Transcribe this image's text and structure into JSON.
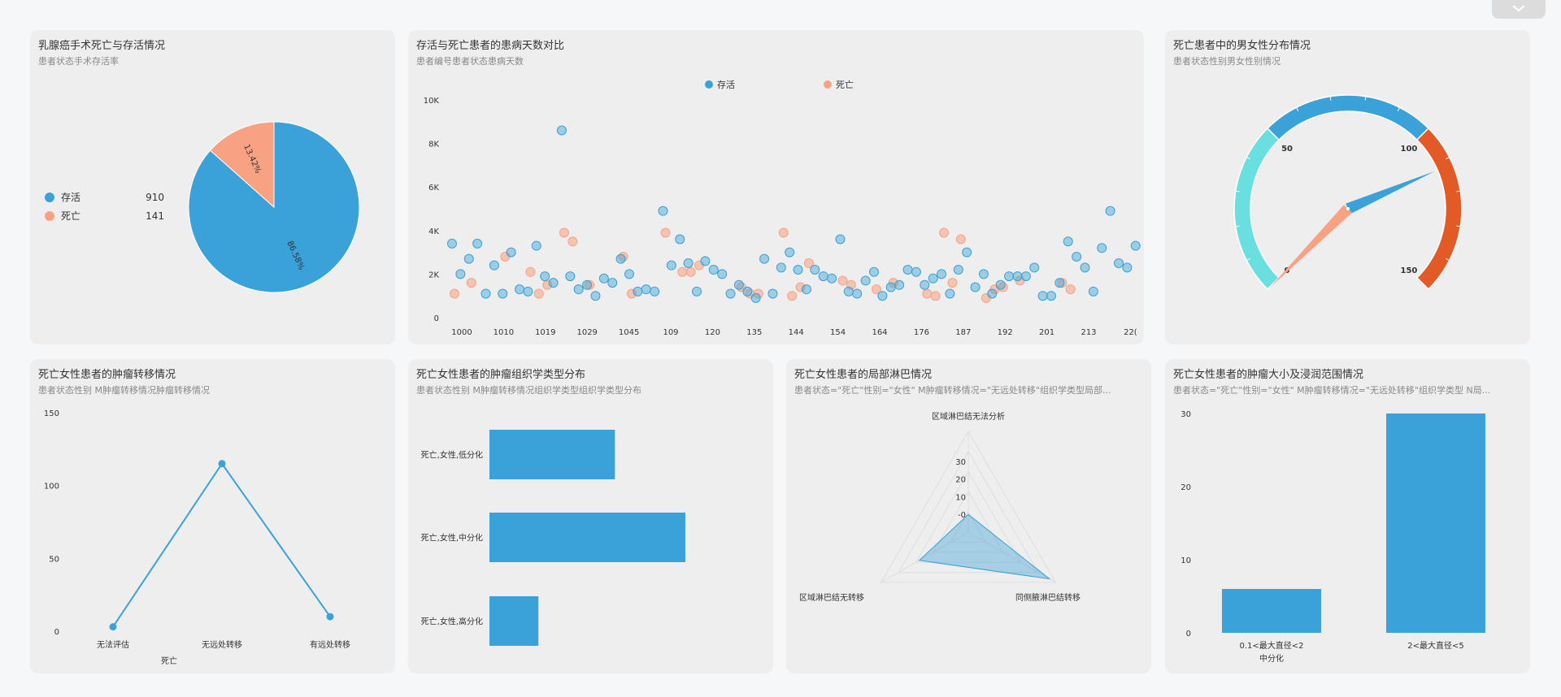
{
  "colors": {
    "alive": "#3aa1d9",
    "dead": "#f9a283",
    "cyan": "#6adfe0",
    "orange": "#e25a26",
    "bar": "#3aa1d9"
  },
  "top_toggle": {
    "icon": "chevron-down-icon"
  },
  "cards": {
    "pie": {
      "title": "乳腺癌手术死亡与存活情况",
      "subtitle": "患者状态手术存活率"
    },
    "scatter": {
      "title": "存活与死亡患者的患病天数对比",
      "subtitle": "患者编号患者状态患病天数"
    },
    "gauge": {
      "title": "死亡患者中的男女性分布情况",
      "subtitle": "患者状态性别男女性别情况"
    },
    "line": {
      "title": "死亡女性患者的肿瘤转移情况",
      "subtitle": "患者状态性别 M肿瘤转移情况肿瘤转移情况"
    },
    "hbar": {
      "title": "死亡女性患者的肿瘤组织学类型分布",
      "subtitle": "患者状态性别 M肿瘤转移情况组织学类型组织学类型分布"
    },
    "radar": {
      "title": "死亡女性患者的局部淋巴情况",
      "subtitle": "患者状态=\"死亡\"性别=\"女性\" M肿瘤转移情况=\"无远处转移\"组织学类型局部..."
    },
    "vbar": {
      "title": "死亡女性患者的肿瘤大小及浸润范围情况",
      "subtitle": "患者状态=\"死亡\"性别=\"女性\" M肿瘤转移情况=\"无远处转移\"组织学类型 N局..."
    }
  },
  "chart_data": [
    {
      "id": "pie",
      "type": "pie",
      "legend": [
        {
          "name": "存活",
          "value": "910"
        },
        {
          "name": "死亡",
          "value": "141"
        }
      ],
      "values": [
        910,
        141
      ],
      "labels": [
        "86.58%",
        "13.42%"
      ]
    },
    {
      "id": "scatter",
      "type": "scatter",
      "legend": [
        "存活",
        "死亡"
      ],
      "y_ticks": [
        "0",
        "2K",
        "4K",
        "6K",
        "8K",
        "10K"
      ],
      "ylim": [
        0,
        10000
      ],
      "x_ticks": [
        "1000",
        "1010",
        "1019",
        "1029",
        "1045",
        "109",
        "120",
        "135",
        "144",
        "154",
        "164",
        "176",
        "187",
        "192",
        "201",
        "213",
        "22("
      ],
      "alive": [
        [
          0,
          3400
        ],
        [
          1,
          2000
        ],
        [
          2,
          2700
        ],
        [
          3,
          3400
        ],
        [
          4,
          1100
        ],
        [
          5,
          2400
        ],
        [
          6,
          1100
        ],
        [
          7,
          3000
        ],
        [
          8,
          1300
        ],
        [
          9,
          1200
        ],
        [
          10,
          3300
        ],
        [
          11,
          1900
        ],
        [
          12,
          1600
        ],
        [
          13,
          8600
        ],
        [
          14,
          1900
        ],
        [
          15,
          1300
        ],
        [
          16,
          1500
        ],
        [
          17,
          1000
        ],
        [
          18,
          1800
        ],
        [
          19,
          1600
        ],
        [
          20,
          2700
        ],
        [
          21,
          2000
        ],
        [
          22,
          1200
        ],
        [
          23,
          1300
        ],
        [
          24,
          1200
        ],
        [
          25,
          4900
        ],
        [
          26,
          2400
        ],
        [
          27,
          3600
        ],
        [
          28,
          2500
        ],
        [
          29,
          1200
        ],
        [
          30,
          2600
        ],
        [
          31,
          2200
        ],
        [
          32,
          2000
        ],
        [
          33,
          1100
        ],
        [
          34,
          1500
        ],
        [
          35,
          1200
        ],
        [
          36,
          900
        ],
        [
          37,
          2700
        ],
        [
          38,
          1100
        ],
        [
          39,
          2300
        ],
        [
          40,
          3000
        ],
        [
          41,
          2200
        ],
        [
          42,
          1300
        ],
        [
          43,
          2200
        ],
        [
          44,
          1900
        ],
        [
          45,
          1800
        ],
        [
          46,
          3600
        ],
        [
          47,
          1200
        ],
        [
          48,
          1100
        ],
        [
          49,
          1700
        ],
        [
          50,
          2100
        ],
        [
          51,
          1000
        ],
        [
          52,
          1400
        ],
        [
          53,
          1500
        ],
        [
          54,
          2200
        ],
        [
          55,
          2100
        ],
        [
          56,
          1500
        ],
        [
          57,
          1800
        ],
        [
          58,
          2000
        ],
        [
          59,
          1100
        ],
        [
          60,
          2200
        ],
        [
          61,
          3000
        ],
        [
          62,
          1400
        ],
        [
          63,
          2000
        ],
        [
          64,
          1100
        ],
        [
          65,
          1500
        ],
        [
          66,
          1900
        ],
        [
          67,
          1900
        ],
        [
          68,
          1900
        ],
        [
          69,
          2300
        ],
        [
          70,
          1000
        ],
        [
          71,
          1000
        ],
        [
          72,
          1600
        ],
        [
          73,
          3500
        ],
        [
          74,
          2800
        ],
        [
          75,
          2300
        ],
        [
          76,
          1200
        ],
        [
          77,
          3200
        ],
        [
          78,
          4900
        ],
        [
          79,
          2500
        ],
        [
          80,
          2300
        ],
        [
          81,
          3300
        ]
      ],
      "dead": [
        [
          0,
          1100
        ],
        [
          2,
          1600
        ],
        [
          6,
          2800
        ],
        [
          9,
          2100
        ],
        [
          10,
          1100
        ],
        [
          11,
          1500
        ],
        [
          13,
          3900
        ],
        [
          14,
          3500
        ],
        [
          16,
          1500
        ],
        [
          20,
          2800
        ],
        [
          21,
          1100
        ],
        [
          25,
          3900
        ],
        [
          27,
          2100
        ],
        [
          28,
          2100
        ],
        [
          29,
          2400
        ],
        [
          34,
          1400
        ],
        [
          35,
          1100
        ],
        [
          36,
          1100
        ],
        [
          39,
          3900
        ],
        [
          40,
          1000
        ],
        [
          41,
          1400
        ],
        [
          42,
          2500
        ],
        [
          46,
          1700
        ],
        [
          47,
          1500
        ],
        [
          50,
          1300
        ],
        [
          52,
          1600
        ],
        [
          56,
          1100
        ],
        [
          57,
          1000
        ],
        [
          58,
          3900
        ],
        [
          59,
          1600
        ],
        [
          60,
          3600
        ],
        [
          63,
          900
        ],
        [
          64,
          1300
        ],
        [
          65,
          1400
        ],
        [
          67,
          1700
        ],
        [
          72,
          1600
        ],
        [
          73,
          1300
        ]
      ]
    },
    {
      "id": "gauge",
      "type": "gauge",
      "min": 0,
      "max": 150,
      "ticks": [
        "0",
        "50",
        "100",
        "150"
      ],
      "value": 112
    },
    {
      "id": "line",
      "type": "line",
      "categories": [
        "无法评估",
        "无远处转移",
        "有远处转移"
      ],
      "values": [
        3,
        115,
        10
      ],
      "y_ticks": [
        "0",
        "50",
        "100",
        "150"
      ],
      "ylim": [
        0,
        150
      ],
      "xlabel": "死亡"
    },
    {
      "id": "hbar",
      "type": "bar",
      "orientation": "horizontal",
      "categories": [
        "死亡,女性,低分化",
        "死亡,女性,中分化",
        "死亡,女性,高分化"
      ],
      "values": [
        41,
        64,
        16
      ],
      "xlim": [
        0,
        85
      ]
    },
    {
      "id": "radar",
      "type": "radar",
      "axes": [
        "区域淋巴结无法分析",
        "同侧腋淋巴结转移",
        "区域淋巴结无转移"
      ],
      "values": [
        0,
        43,
        22
      ],
      "ticks": [
        "-0",
        "10",
        "20",
        "30"
      ],
      "range": [
        -10,
        47
      ]
    },
    {
      "id": "vbar",
      "type": "bar",
      "categories": [
        "0.1<最大直径<2",
        "2<最大直径<5"
      ],
      "values": [
        6,
        30
      ],
      "y_ticks": [
        "0",
        "10",
        "20",
        "30"
      ],
      "ylim": [
        0,
        30
      ],
      "xlabel": "中分化"
    }
  ]
}
